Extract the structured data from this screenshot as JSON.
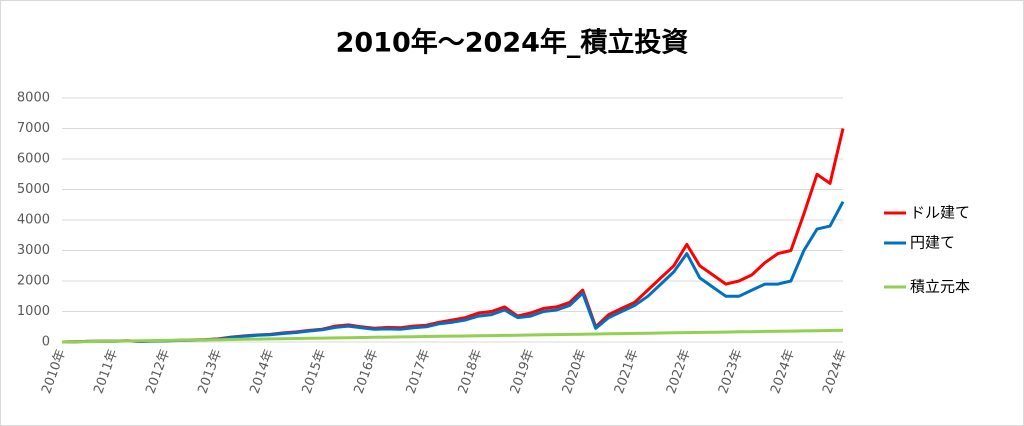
{
  "chart_data": {
    "type": "line",
    "title": "2010年～2024年_積立投資",
    "categories": [
      "2010年",
      null,
      null,
      null,
      "2011年",
      null,
      null,
      null,
      "2012年",
      null,
      null,
      null,
      "2013年",
      null,
      null,
      null,
      "2014年",
      null,
      null,
      null,
      "2015年",
      null,
      null,
      null,
      "2016年",
      null,
      null,
      null,
      "2017年",
      null,
      null,
      null,
      "2018年",
      null,
      null,
      null,
      "2019年",
      null,
      null,
      null,
      "2020年",
      null,
      null,
      null,
      "2021年",
      null,
      null,
      null,
      "2022年",
      null,
      null,
      null,
      "2023年",
      null,
      null,
      null,
      "2024年",
      null,
      null,
      null,
      "2024年"
    ],
    "series": [
      {
        "name": "ドル建て",
        "color": "#ff0000",
        "values": [
          0,
          10,
          20,
          25,
          30,
          40,
          20,
          35,
          40,
          60,
          70,
          80,
          100,
          160,
          200,
          230,
          250,
          300,
          330,
          380,
          420,
          520,
          560,
          500,
          450,
          480,
          470,
          520,
          550,
          650,
          720,
          800,
          950,
          1000,
          1150,
          850,
          950,
          1100,
          1150,
          1300,
          1700,
          500,
          900,
          1100,
          1300,
          1700,
          2100,
          2500,
          3200,
          2500,
          2200,
          1900,
          2000,
          2200,
          2600,
          2900,
          3000,
          4200,
          5500,
          5200,
          7000
        ]
      },
      {
        "name": "円建て",
        "color": "#0070c0",
        "values": [
          0,
          10,
          20,
          25,
          25,
          35,
          20,
          30,
          35,
          50,
          60,
          75,
          90,
          150,
          190,
          220,
          240,
          280,
          310,
          360,
          400,
          480,
          520,
          470,
          420,
          430,
          420,
          470,
          500,
          600,
          650,
          720,
          850,
          900,
          1050,
          800,
          850,
          1000,
          1050,
          1200,
          1600,
          450,
          800,
          1000,
          1200,
          1500,
          1900,
          2300,
          2900,
          2100,
          1800,
          1500,
          1500,
          1700,
          1900,
          1900,
          2000,
          3000,
          3700,
          3800,
          4600
        ]
      },
      {
        "name": "積立元本",
        "color": "#92d050",
        "values": [
          0,
          6,
          13,
          19,
          26,
          32,
          38,
          45,
          51,
          58,
          64,
          70,
          77,
          83,
          90,
          96,
          102,
          109,
          115,
          122,
          128,
          134,
          141,
          147,
          154,
          160,
          166,
          173,
          179,
          186,
          192,
          198,
          205,
          211,
          218,
          224,
          230,
          237,
          243,
          250,
          256,
          262,
          269,
          275,
          282,
          288,
          294,
          301,
          307,
          314,
          320,
          326,
          333,
          339,
          346,
          352,
          358,
          365,
          371,
          378,
          384
        ]
      }
    ],
    "ylim": [
      0,
      8000
    ],
    "yticks": [
      0,
      1000,
      2000,
      3000,
      4000,
      5000,
      6000,
      7000,
      8000
    ],
    "grid": true,
    "legend": "right"
  }
}
